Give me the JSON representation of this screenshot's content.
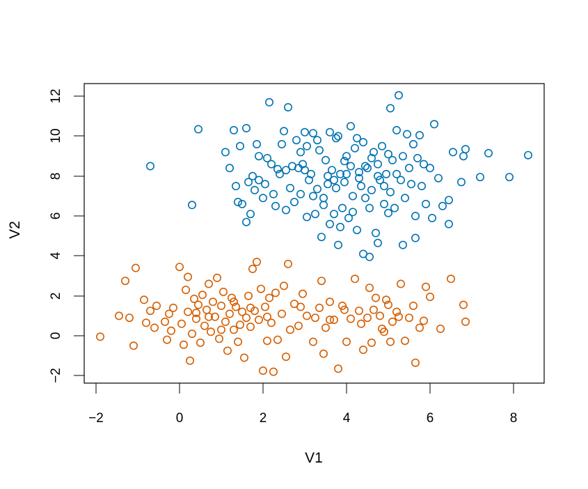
{
  "chart_data": {
    "type": "scatter",
    "title": "",
    "xlabel": "V1",
    "ylabel": "V2",
    "xlim": [
      -2.3,
      8.75
    ],
    "ylim": [
      -2.4,
      12.55
    ],
    "x_ticks": [
      -2,
      0,
      2,
      4,
      6,
      8
    ],
    "y_ticks": [
      -2,
      0,
      2,
      4,
      6,
      8,
      10,
      12
    ],
    "x_tick_labels": [
      "−2",
      "0",
      "2",
      "4",
      "6",
      "8"
    ],
    "y_tick_labels": [
      "−2",
      "0",
      "2",
      "4",
      "6",
      "8",
      "10",
      "12"
    ],
    "grid": false,
    "legend": "none",
    "marker": "open-circle",
    "series": [
      {
        "color": "#0072B2",
        "points": [
          [
            -0.7,
            8.5
          ],
          [
            0.3,
            6.55
          ],
          [
            0.45,
            10.35
          ],
          [
            1.1,
            9.2
          ],
          [
            1.2,
            8.4
          ],
          [
            1.3,
            10.3
          ],
          [
            1.35,
            7.5
          ],
          [
            1.4,
            6.7
          ],
          [
            1.45,
            9.5
          ],
          [
            1.5,
            6.6
          ],
          [
            1.6,
            10.4
          ],
          [
            1.65,
            7.7
          ],
          [
            1.7,
            6.1
          ],
          [
            1.6,
            5.7
          ],
          [
            1.75,
            8.0
          ],
          [
            1.8,
            7.3
          ],
          [
            1.9,
            9.0
          ],
          [
            1.85,
            9.6
          ],
          [
            1.9,
            7.8
          ],
          [
            2.0,
            6.9
          ],
          [
            2.05,
            7.6
          ],
          [
            2.1,
            8.9
          ],
          [
            2.15,
            11.7
          ],
          [
            2.2,
            8.6
          ],
          [
            2.25,
            7.1
          ],
          [
            2.3,
            6.5
          ],
          [
            2.4,
            8.1
          ],
          [
            2.45,
            9.6
          ],
          [
            2.5,
            10.25
          ],
          [
            2.55,
            8.3
          ],
          [
            2.55,
            6.3
          ],
          [
            2.6,
            11.45
          ],
          [
            2.65,
            7.4
          ],
          [
            2.7,
            8.5
          ],
          [
            2.75,
            6.7
          ],
          [
            2.8,
            9.8
          ],
          [
            2.85,
            8.4
          ],
          [
            2.9,
            7.1
          ],
          [
            2.95,
            8.6
          ],
          [
            3.0,
            10.2
          ],
          [
            3.05,
            9.5
          ],
          [
            3.05,
            5.95
          ],
          [
            3.1,
            7.8
          ],
          [
            3.15,
            8.1
          ],
          [
            3.2,
            10.15
          ],
          [
            3.25,
            6.1
          ],
          [
            3.3,
            7.35
          ],
          [
            3.35,
            9.3
          ],
          [
            3.4,
            4.95
          ],
          [
            3.45,
            6.55
          ],
          [
            3.5,
            8.8
          ],
          [
            3.55,
            7.6
          ],
          [
            3.6,
            10.2
          ],
          [
            3.6,
            5.6
          ],
          [
            3.65,
            8.3
          ],
          [
            3.7,
            6.1
          ],
          [
            3.75,
            9.9
          ],
          [
            3.75,
            7.4
          ],
          [
            3.8,
            4.55
          ],
          [
            3.8,
            10.0
          ],
          [
            3.85,
            8.1
          ],
          [
            3.9,
            6.4
          ],
          [
            3.95,
            7.7
          ],
          [
            4.0,
            9.0
          ],
          [
            4.05,
            5.9
          ],
          [
            4.1,
            10.5
          ],
          [
            4.1,
            8.5
          ],
          [
            4.15,
            7.0
          ],
          [
            4.2,
            9.4
          ],
          [
            4.25,
            5.3
          ],
          [
            4.3,
            8.2
          ],
          [
            4.35,
            7.5
          ],
          [
            4.4,
            9.7
          ],
          [
            4.45,
            6.9
          ],
          [
            4.4,
            4.1
          ],
          [
            4.5,
            8.4
          ],
          [
            4.55,
            3.95
          ],
          [
            4.6,
            7.3
          ],
          [
            4.65,
            9.2
          ],
          [
            4.7,
            5.15
          ],
          [
            4.75,
            8.6
          ],
          [
            4.75,
            4.65
          ],
          [
            4.8,
            7.8
          ],
          [
            4.85,
            9.5
          ],
          [
            4.9,
            6.6
          ],
          [
            4.95,
            8.1
          ],
          [
            5.0,
            9.1
          ],
          [
            5.05,
            7.2
          ],
          [
            5.05,
            11.4
          ],
          [
            5.1,
            8.8
          ],
          [
            5.15,
            6.4
          ],
          [
            5.2,
            10.3
          ],
          [
            5.25,
            12.05
          ],
          [
            5.3,
            7.8
          ],
          [
            5.35,
            9.0
          ],
          [
            5.35,
            4.55
          ],
          [
            5.4,
            6.9
          ],
          [
            5.45,
            10.1
          ],
          [
            5.5,
            8.4
          ],
          [
            5.55,
            7.6
          ],
          [
            5.6,
            9.6
          ],
          [
            5.65,
            6.0
          ],
          [
            5.65,
            4.9
          ],
          [
            5.7,
            8.9
          ],
          [
            5.75,
            10.05
          ],
          [
            5.8,
            7.5
          ],
          [
            5.85,
            8.6
          ],
          [
            5.9,
            6.6
          ],
          [
            6.0,
            8.4
          ],
          [
            6.05,
            5.9
          ],
          [
            6.1,
            10.6
          ],
          [
            6.2,
            7.9
          ],
          [
            6.3,
            6.5
          ],
          [
            6.45,
            5.6
          ],
          [
            6.45,
            6.8
          ],
          [
            6.55,
            9.2
          ],
          [
            6.75,
            7.7
          ],
          [
            6.8,
            9.0
          ],
          [
            6.85,
            9.35
          ],
          [
            7.2,
            7.95
          ],
          [
            7.4,
            9.15
          ],
          [
            7.9,
            7.95
          ],
          [
            8.35,
            9.05
          ],
          [
            3.0,
            8.3
          ],
          [
            3.3,
            9.8
          ],
          [
            3.55,
            8.0
          ],
          [
            3.95,
            8.75
          ],
          [
            4.3,
            7.9
          ],
          [
            4.6,
            8.9
          ],
          [
            4.9,
            7.5
          ],
          [
            5.2,
            8.1
          ],
          [
            3.2,
            7.0
          ],
          [
            3.7,
            7.8
          ],
          [
            4.0,
            8.1
          ],
          [
            4.45,
            8.5
          ],
          [
            4.75,
            8.0
          ],
          [
            2.9,
            9.2
          ],
          [
            3.45,
            6.9
          ],
          [
            4.15,
            6.2
          ],
          [
            4.55,
            6.4
          ],
          [
            5.0,
            6.15
          ],
          [
            2.35,
            8.35
          ],
          [
            3.85,
            5.45
          ],
          [
            4.25,
            9.9
          ]
        ]
      },
      {
        "color": "#D55E00",
        "points": [
          [
            -1.9,
            -0.05
          ],
          [
            -1.45,
            1.0
          ],
          [
            -1.3,
            2.75
          ],
          [
            -1.2,
            0.9
          ],
          [
            -1.05,
            3.4
          ],
          [
            -1.1,
            -0.5
          ],
          [
            -0.85,
            1.8
          ],
          [
            -0.8,
            0.65
          ],
          [
            -0.7,
            1.25
          ],
          [
            -0.6,
            0.4
          ],
          [
            -0.55,
            1.5
          ],
          [
            -0.35,
            0.7
          ],
          [
            -0.3,
            -0.2
          ],
          [
            -0.25,
            1.1
          ],
          [
            -0.2,
            0.25
          ],
          [
            -0.15,
            1.4
          ],
          [
            0.0,
            3.45
          ],
          [
            0.05,
            0.6
          ],
          [
            0.1,
            -0.45
          ],
          [
            0.15,
            2.3
          ],
          [
            0.2,
            1.2
          ],
          [
            0.2,
            2.95
          ],
          [
            0.25,
            -1.25
          ],
          [
            0.3,
            0.1
          ],
          [
            0.35,
            1.85
          ],
          [
            0.4,
            0.85
          ],
          [
            0.45,
            1.55
          ],
          [
            0.5,
            -0.35
          ],
          [
            0.55,
            2.05
          ],
          [
            0.6,
            0.5
          ],
          [
            0.65,
            1.3
          ],
          [
            0.7,
            2.6
          ],
          [
            0.75,
            0.2
          ],
          [
            0.8,
            1.7
          ],
          [
            0.85,
            0.95
          ],
          [
            0.9,
            2.9
          ],
          [
            0.95,
            -0.15
          ],
          [
            1.0,
            1.5
          ],
          [
            1.05,
            2.2
          ],
          [
            1.1,
            0.7
          ],
          [
            1.15,
            -0.75
          ],
          [
            1.2,
            1.1
          ],
          [
            1.25,
            1.9
          ],
          [
            1.3,
            0.3
          ],
          [
            1.35,
            1.45
          ],
          [
            1.4,
            -0.3
          ],
          [
            1.45,
            0.55
          ],
          [
            1.5,
            1.2
          ],
          [
            1.55,
            -1.1
          ],
          [
            1.6,
            0.9
          ],
          [
            1.65,
            2.0
          ],
          [
            1.7,
            0.45
          ],
          [
            1.75,
            3.35
          ],
          [
            1.8,
            1.25
          ],
          [
            1.85,
            3.7
          ],
          [
            1.9,
            0.8
          ],
          [
            1.95,
            2.35
          ],
          [
            2.0,
            -1.75
          ],
          [
            2.05,
            1.45
          ],
          [
            2.1,
            -0.25
          ],
          [
            2.15,
            1.9
          ],
          [
            2.2,
            0.65
          ],
          [
            2.25,
            -1.8
          ],
          [
            2.3,
            2.15
          ],
          [
            2.35,
            -0.2
          ],
          [
            2.45,
            1.1
          ],
          [
            2.5,
            2.5
          ],
          [
            2.55,
            -1.05
          ],
          [
            2.6,
            3.6
          ],
          [
            2.65,
            0.3
          ],
          [
            2.75,
            1.6
          ],
          [
            2.85,
            0.5
          ],
          [
            2.95,
            2.1
          ],
          [
            3.05,
            1.0
          ],
          [
            3.2,
            -0.3
          ],
          [
            3.35,
            1.4
          ],
          [
            3.4,
            2.75
          ],
          [
            3.45,
            -0.9
          ],
          [
            3.5,
            0.4
          ],
          [
            3.6,
            1.7
          ],
          [
            3.7,
            0.8
          ],
          [
            3.8,
            -1.65
          ],
          [
            3.9,
            1.5
          ],
          [
            4.0,
            -0.3
          ],
          [
            4.1,
            0.85
          ],
          [
            4.2,
            2.85
          ],
          [
            4.3,
            1.25
          ],
          [
            4.4,
            -0.7
          ],
          [
            4.5,
            0.9
          ],
          [
            4.55,
            2.4
          ],
          [
            4.6,
            -0.35
          ],
          [
            4.7,
            1.9
          ],
          [
            4.8,
            1.0
          ],
          [
            4.9,
            0.2
          ],
          [
            5.0,
            1.55
          ],
          [
            5.05,
            -0.3
          ],
          [
            5.1,
            0.7
          ],
          [
            5.2,
            1.2
          ],
          [
            5.3,
            2.6
          ],
          [
            5.4,
            -0.25
          ],
          [
            5.5,
            0.9
          ],
          [
            5.6,
            1.5
          ],
          [
            5.65,
            -1.35
          ],
          [
            5.75,
            0.4
          ],
          [
            5.85,
            0.75
          ],
          [
            5.9,
            2.45
          ],
          [
            6.0,
            1.95
          ],
          [
            6.25,
            0.35
          ],
          [
            6.5,
            2.85
          ],
          [
            6.8,
            1.55
          ],
          [
            6.85,
            0.7
          ],
          [
            4.65,
            1.3
          ],
          [
            4.35,
            0.6
          ],
          [
            3.95,
            1.3
          ],
          [
            3.25,
            0.9
          ],
          [
            2.9,
            1.45
          ],
          [
            1.3,
            1.7
          ],
          [
            0.7,
            0.95
          ],
          [
            1.0,
            0.3
          ],
          [
            0.4,
            1.15
          ],
          [
            1.7,
            1.4
          ],
          [
            2.1,
            0.95
          ],
          [
            4.85,
            0.35
          ],
          [
            5.25,
            0.95
          ],
          [
            3.6,
            0.8
          ],
          [
            4.95,
            1.8
          ]
        ]
      }
    ]
  }
}
